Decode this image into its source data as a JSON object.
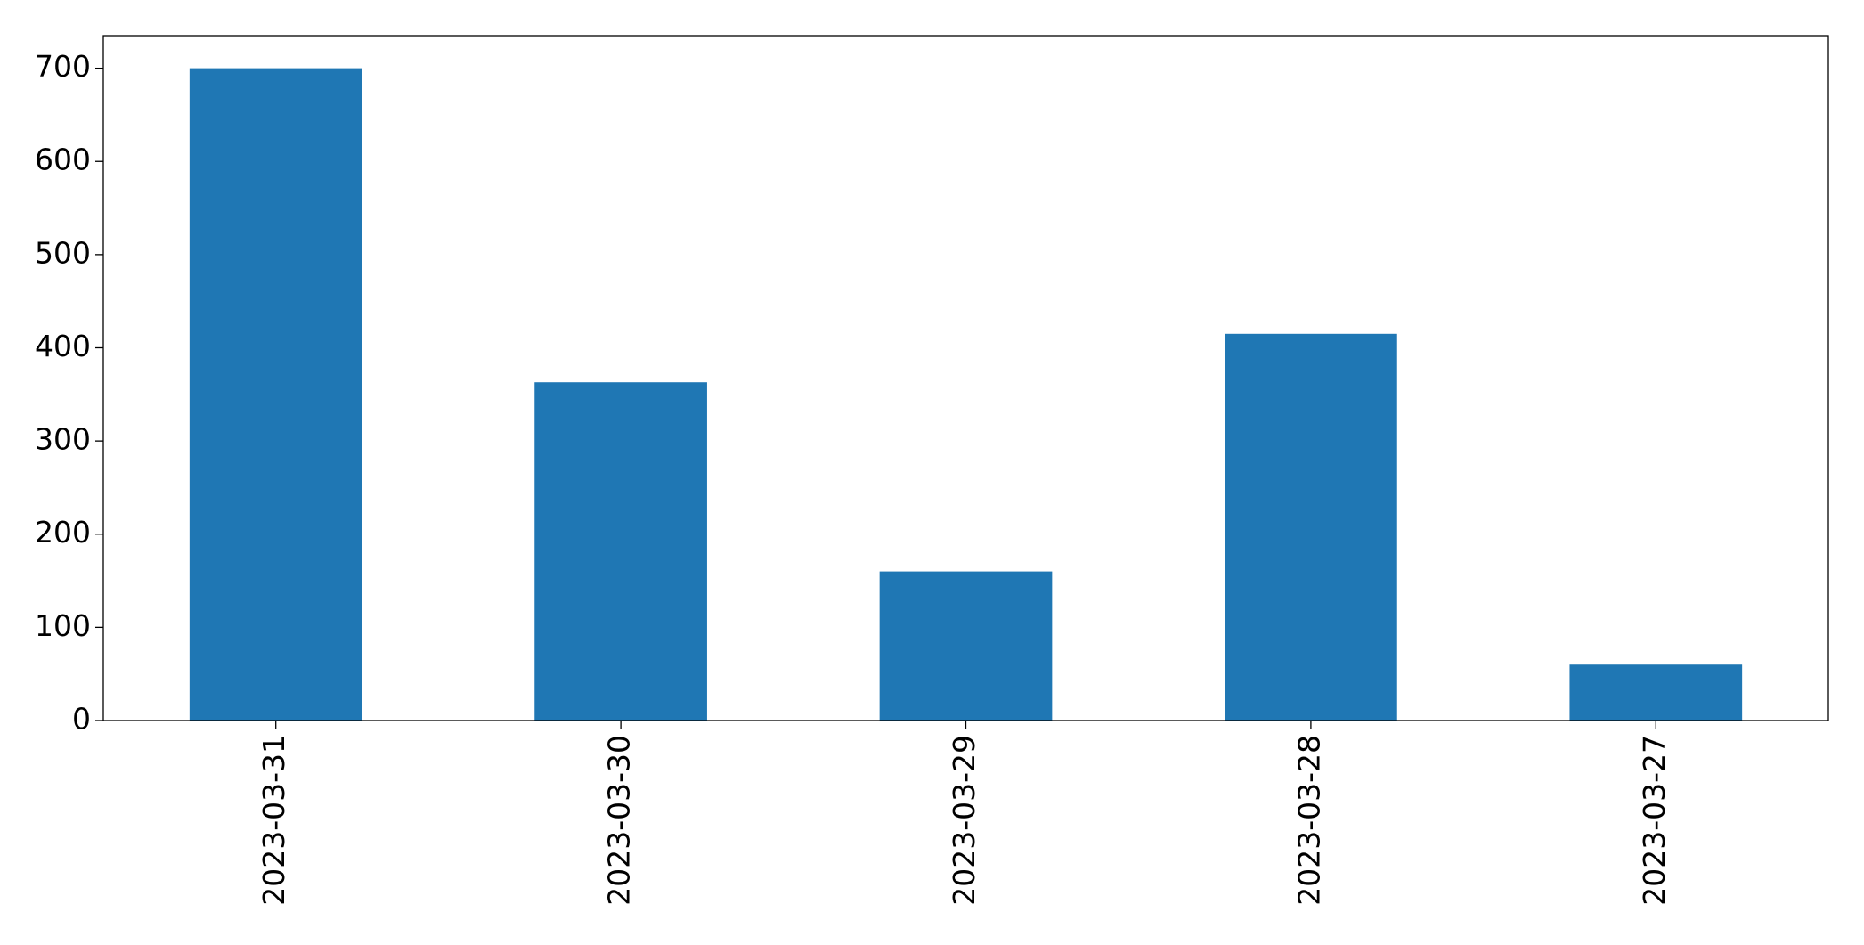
{
  "chart_data": {
    "type": "bar",
    "categories": [
      "2023-03-31",
      "2023-03-30",
      "2023-03-29",
      "2023-03-28",
      "2023-03-27"
    ],
    "values": [
      700,
      363,
      160,
      415,
      60
    ],
    "color": "#1f77b4",
    "ylim": [
      0,
      735
    ],
    "yticks": [
      0,
      100,
      200,
      300,
      400,
      500,
      600,
      700
    ],
    "grid": false
  }
}
